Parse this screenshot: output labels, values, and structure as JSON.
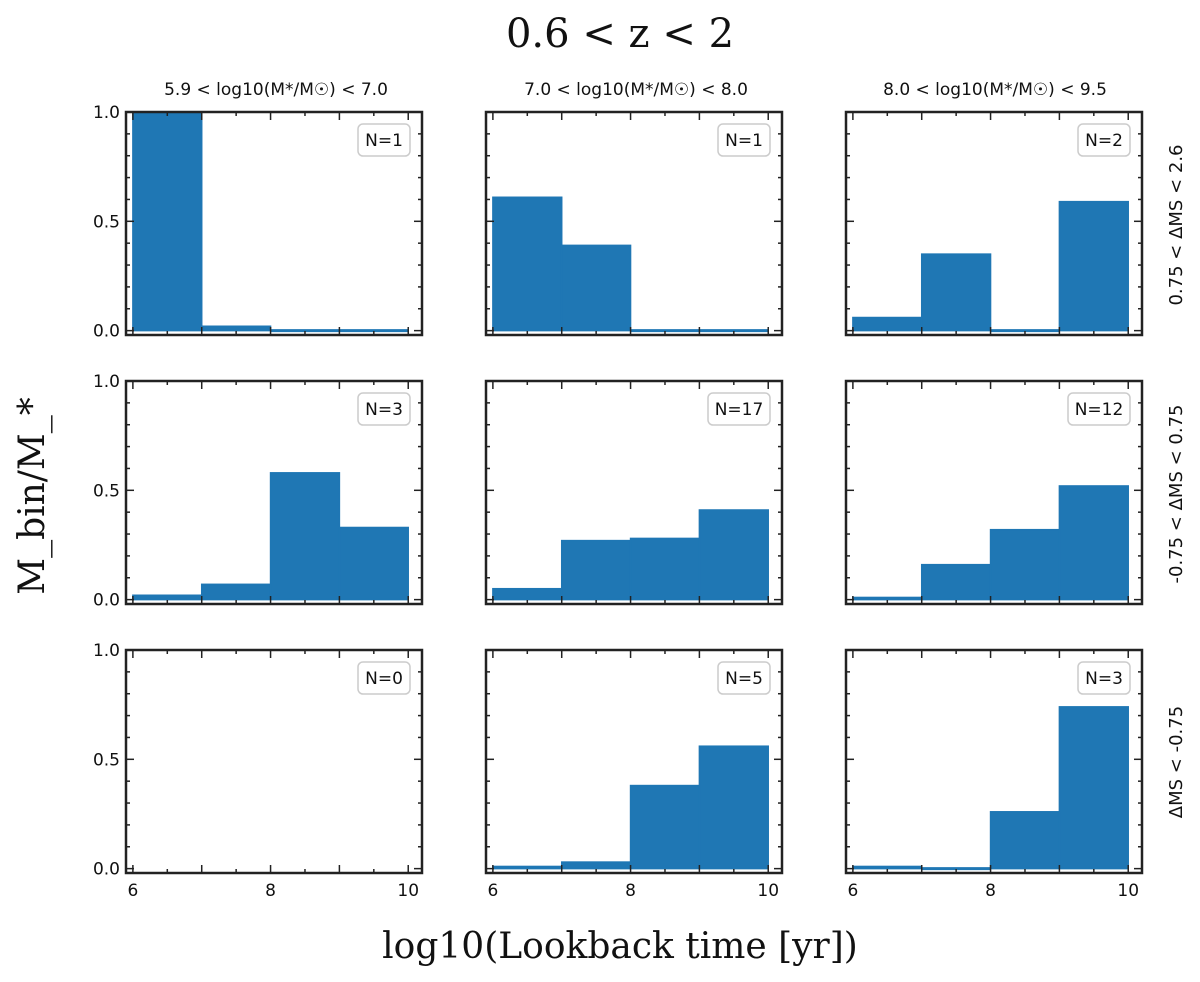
{
  "figure": {
    "suptitle": "0.6 < z < 2",
    "ylabel": "M_bin/M_*",
    "xlabel": "log10(Lookback time [yr])",
    "col_titles": [
      "5.9 < log10(M*/M☉) < 7.0",
      "7.0 < log10(M*/M☉) < 8.0",
      "8.0 < log10(M*/M☉) < 9.5"
    ],
    "row_titles": [
      "0.75 < ΔMS < 2.6",
      "-0.75 < ΔMS < 0.75",
      "ΔMS < -0.75"
    ],
    "bar_color": "#1f77b4",
    "bin_edges": [
      6.0,
      7.0,
      8.0,
      9.0,
      10.0
    ]
  },
  "chart_data": [
    {
      "type": "bar",
      "row": 0,
      "col": 0,
      "annotation": "N=1",
      "values": [
        1.0,
        0.02,
        0.0,
        0.0
      ],
      "xlim": [
        5.9,
        10.2
      ],
      "ylim": [
        -0.02,
        1.0
      ],
      "xticks": [
        "6",
        "8",
        "10"
      ],
      "yticks": [
        "0.0",
        "0.5",
        "1.0"
      ]
    },
    {
      "type": "bar",
      "row": 0,
      "col": 1,
      "annotation": "N=1",
      "values": [
        0.61,
        0.39,
        0.0,
        0.0
      ],
      "xlim": [
        5.9,
        10.2
      ],
      "ylim": [
        -0.02,
        1.0
      ],
      "xticks": [
        "6",
        "8",
        "10"
      ],
      "yticks": [
        "0.0",
        "0.5",
        "1.0"
      ]
    },
    {
      "type": "bar",
      "row": 0,
      "col": 2,
      "annotation": "N=2",
      "values": [
        0.06,
        0.35,
        0.0,
        0.59
      ],
      "xlim": [
        5.9,
        10.2
      ],
      "ylim": [
        -0.02,
        1.0
      ],
      "xticks": [
        "6",
        "8",
        "10"
      ],
      "yticks": [
        "0.0",
        "0.5",
        "1.0"
      ]
    },
    {
      "type": "bar",
      "row": 1,
      "col": 0,
      "annotation": "N=3",
      "values": [
        0.02,
        0.07,
        0.58,
        0.33
      ],
      "xlim": [
        5.9,
        10.2
      ],
      "ylim": [
        -0.02,
        1.0
      ],
      "xticks": [
        "6",
        "8",
        "10"
      ],
      "yticks": [
        "0.0",
        "0.5",
        "1.0"
      ]
    },
    {
      "type": "bar",
      "row": 1,
      "col": 1,
      "annotation": "N=17",
      "values": [
        0.05,
        0.27,
        0.28,
        0.41
      ],
      "xlim": [
        5.9,
        10.2
      ],
      "ylim": [
        -0.02,
        1.0
      ],
      "xticks": [
        "6",
        "8",
        "10"
      ],
      "yticks": [
        "0.0",
        "0.5",
        "1.0"
      ]
    },
    {
      "type": "bar",
      "row": 1,
      "col": 2,
      "annotation": "N=12",
      "values": [
        0.01,
        0.16,
        0.32,
        0.52
      ],
      "xlim": [
        5.9,
        10.2
      ],
      "ylim": [
        -0.02,
        1.0
      ],
      "xticks": [
        "6",
        "8",
        "10"
      ],
      "yticks": [
        "0.0",
        "0.5",
        "1.0"
      ]
    },
    {
      "type": "bar",
      "row": 2,
      "col": 0,
      "annotation": "N=0",
      "values": [],
      "xlim": [
        5.9,
        10.2
      ],
      "ylim": [
        -0.02,
        1.0
      ],
      "xticks": [
        "6",
        "8",
        "10"
      ],
      "yticks": [
        "0.0",
        "0.5",
        "1.0"
      ]
    },
    {
      "type": "bar",
      "row": 2,
      "col": 1,
      "annotation": "N=5",
      "values": [
        0.01,
        0.03,
        0.38,
        0.56
      ],
      "xlim": [
        5.9,
        10.2
      ],
      "ylim": [
        -0.02,
        1.0
      ],
      "xticks": [
        "6",
        "8",
        "10"
      ],
      "yticks": [
        "0.0",
        "0.5",
        "1.0"
      ]
    },
    {
      "type": "bar",
      "row": 2,
      "col": 2,
      "annotation": "N=3",
      "values": [
        0.01,
        0.0,
        0.26,
        0.74
      ],
      "xlim": [
        5.9,
        10.2
      ],
      "ylim": [
        -0.02,
        1.0
      ],
      "xticks": [
        "6",
        "8",
        "10"
      ],
      "yticks": [
        "0.0",
        "0.5",
        "1.0"
      ]
    }
  ]
}
